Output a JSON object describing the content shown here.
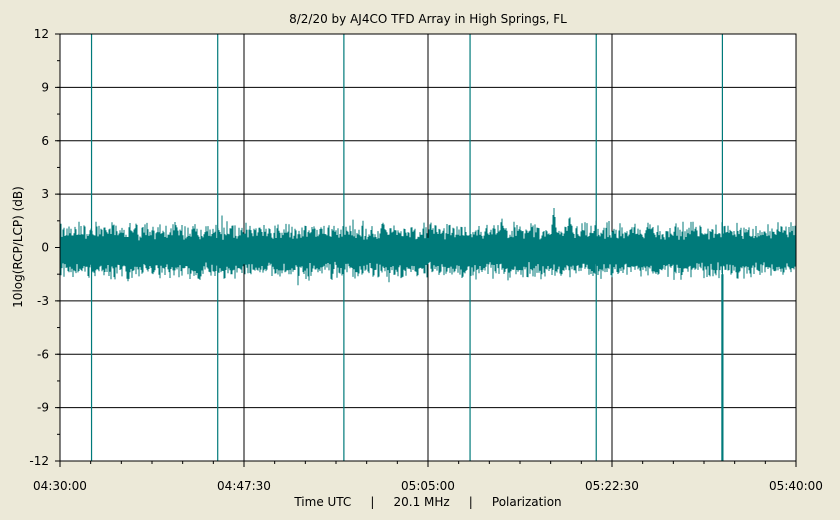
{
  "chart_data": {
    "type": "line",
    "title": "8/2/20  by  AJ4CO TFD Array  in  High Springs, FL",
    "ylabel": "10log(RCP/LCP) (dB)",
    "xlabel": "Time UTC     |     20.1 MHz     |     Polarization",
    "ylim": [
      -12,
      12
    ],
    "y_ticks": [
      12,
      9,
      6,
      3,
      0,
      -3,
      -6,
      -9,
      -12
    ],
    "y_tick_labels": [
      "12",
      "9",
      "6",
      "3",
      "0",
      "-3",
      "-6",
      "-9",
      "-12"
    ],
    "xlim_minutes_utc": [
      270,
      340
    ],
    "x_ticks_minutes_utc": [
      270,
      287.5,
      305,
      322.5,
      340
    ],
    "x_tick_labels": [
      "04:30:00",
      "04:47:30",
      "05:05:00",
      "05:22:30",
      "05:40:00"
    ],
    "grid": true,
    "series": [
      {
        "color": "#007a7a",
        "baseline_db": -0.3,
        "noise_band_db": [
          -1.5,
          1.2
        ],
        "peaks": [
          {
            "x_min": 281.0,
            "y": 1.9
          },
          {
            "x_min": 284.0,
            "y": 1.3
          },
          {
            "x_min": 289.0,
            "y": 1.6
          },
          {
            "x_min": 301.0,
            "y": 1.4
          },
          {
            "x_min": 312.0,
            "y": 1.9
          },
          {
            "x_min": 317.0,
            "y": 2.4
          },
          {
            "x_min": 318.5,
            "y": 2.2
          },
          {
            "x_min": 313.0,
            "y": -1.6
          },
          {
            "x_min": 317.3,
            "y": -1.7
          },
          {
            "x_min": 276.5,
            "y": -2.3
          },
          {
            "x_min": 283.2,
            "y": -2.4
          }
        ]
      }
    ],
    "vertical_markers_minutes_utc": [
      273.0,
      285.0,
      297.0,
      309.0,
      321.0,
      333.0
    ],
    "deep_dip": {
      "x_min": 333.0,
      "y": -12
    }
  }
}
